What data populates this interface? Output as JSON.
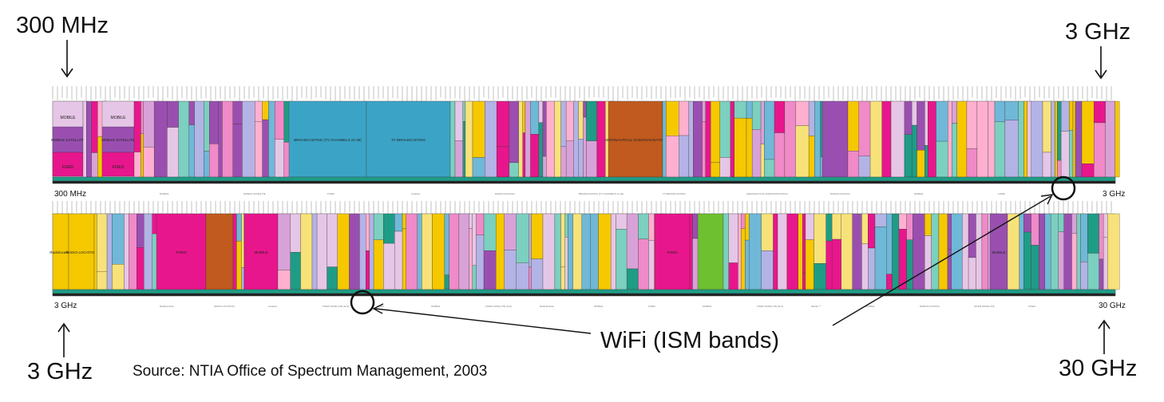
{
  "labels": {
    "top_left": "300 MHz",
    "top_right": "3 GHz",
    "bottom_left": "3 GHz",
    "bottom_right": "30 GHz",
    "strip1_start": "300 MHz",
    "strip1_end": "3 GHz",
    "strip2_start": "3 GHz",
    "strip2_end": "30 GHz",
    "wifi": "WiFi (ISM bands)",
    "source": "Source: NTIA Office of Spectrum Management, 2003"
  },
  "band_text": {
    "strip1": [
      "MOBILE",
      "MOBILE SATELLITE",
      "FIXED",
      "Amateur",
      "RADIOLOCATION",
      "BROADCASTING (TV CHANNELS 21-36)",
      "TV BROADCASTING",
      "AERONAUTICAL RADIONAVIGATION",
      "RADIOLOCATION",
      "MOBILE",
      "FIXED"
    ],
    "strip2": [
      "Radiolocation",
      "RADIO-LOCATION",
      "Amateur",
      "FIXED SATELLITE (E-S)",
      "FIXED",
      "MOBILE",
      "FIXED SATELLITE (S-E)",
      "Radiolocation",
      "MOBILE",
      "FIXED",
      "MOBILE",
      "FIXED SATELLITE (E-S)",
      "Mobile **",
      "MOBILE",
      "RADIOLOCATION",
      "INTER-SATELLITE",
      "FIXED"
    ]
  },
  "colors": {
    "fixed": "#e8168c",
    "mobile": "#e6c6e6",
    "broadcast": "#3ba4c6",
    "aero": "#c05a1e",
    "radiolocation": "#f5c800",
    "teal": "#1f9c86",
    "purple": "#9a4fb0"
  }
}
